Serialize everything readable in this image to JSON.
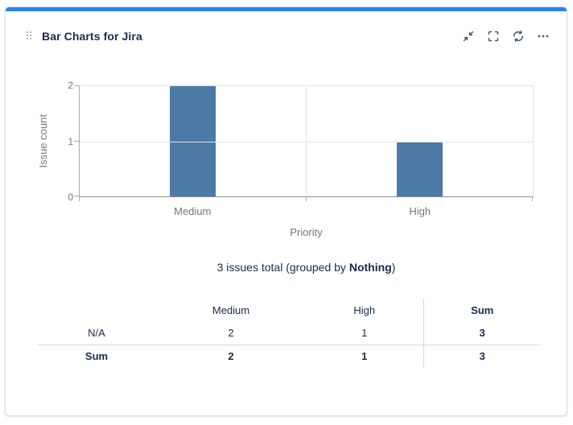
{
  "header": {
    "title": "Bar Charts for Jira",
    "actions": [
      {
        "name": "minimize",
        "label": "Minimize"
      },
      {
        "name": "fullscreen",
        "label": "Full screen"
      },
      {
        "name": "refresh",
        "label": "Refresh"
      },
      {
        "name": "more",
        "label": "More options"
      }
    ]
  },
  "chart_data": {
    "type": "bar",
    "categories": [
      "Medium",
      "High"
    ],
    "values": [
      2,
      1
    ],
    "title": "",
    "xlabel": "Priority",
    "ylabel": "Issue count",
    "ylim": [
      0,
      2
    ],
    "yticks": [
      0,
      1,
      2
    ],
    "grid": true,
    "legend_position": "none",
    "bar_color": "#4d7aa7"
  },
  "summary": {
    "prefix": "3 issues total (grouped by ",
    "group": "Nothing",
    "suffix": ")"
  },
  "table": {
    "headers": [
      "",
      "Medium",
      "High",
      "Sum"
    ],
    "rows": [
      {
        "label": "N/A",
        "values": [
          "2",
          "1",
          "3"
        ]
      },
      {
        "label": "Sum",
        "values": [
          "2",
          "1",
          "3"
        ]
      }
    ]
  },
  "colors": {
    "accent": "#2684ff",
    "bar": "#4d7aa7",
    "title_text": "#172b4d",
    "chart_text": "#757575",
    "icon": "#44546f"
  }
}
